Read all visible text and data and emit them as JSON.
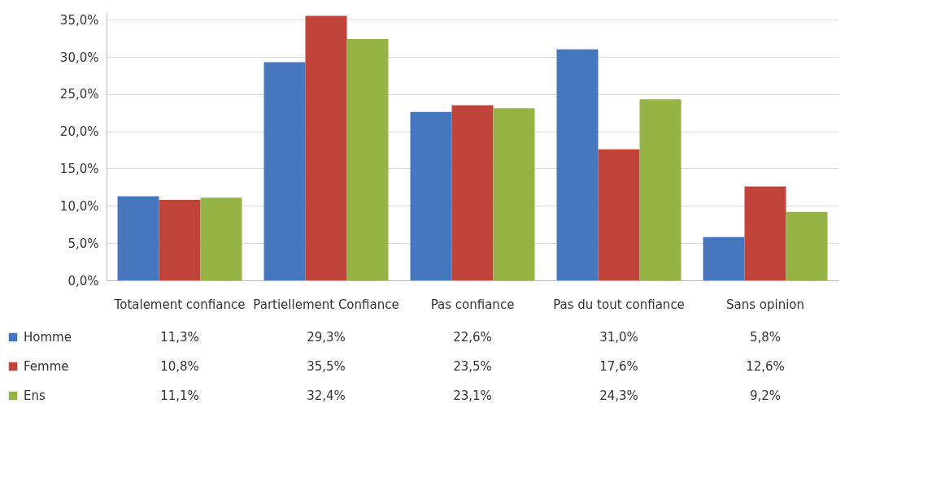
{
  "chart_data": {
    "type": "bar",
    "categories": [
      "Totalement confiance",
      "Partiellement Confiance",
      "Pas confiance",
      "Pas du tout confiance",
      "Sans opinion"
    ],
    "series": [
      {
        "name": "Homme",
        "color": "#4677be",
        "values": [
          11.3,
          29.3,
          22.6,
          31.0,
          5.8
        ],
        "value_labels": [
          "11,3%",
          "29,3%",
          "22,6%",
          "31,0%",
          "5,8%"
        ]
      },
      {
        "name": "Femme",
        "color": "#c0443a",
        "values": [
          10.8,
          35.5,
          23.5,
          17.6,
          12.6
        ],
        "value_labels": [
          "10,8%",
          "35,5%",
          "23,5%",
          "17,6%",
          "12,6%"
        ]
      },
      {
        "name": "Ens",
        "color": "#96b446",
        "values": [
          11.1,
          32.4,
          23.1,
          24.3,
          9.2
        ],
        "value_labels": [
          "11,1%",
          "32,4%",
          "23,1%",
          "24,3%",
          "9,2%"
        ]
      }
    ],
    "ylim": [
      0,
      36
    ],
    "yticks": [
      {
        "value": 0,
        "label": "0,0%"
      },
      {
        "value": 5,
        "label": "5,0%"
      },
      {
        "value": 10,
        "label": "10,0%"
      },
      {
        "value": 15,
        "label": "15,0%"
      },
      {
        "value": 20,
        "label": "20,0%"
      },
      {
        "value": 25,
        "label": "25,0%"
      },
      {
        "value": 30,
        "label": "30,0%"
      },
      {
        "value": 35,
        "label": "35,0%"
      }
    ],
    "grid": "y",
    "legend": "bottom"
  }
}
